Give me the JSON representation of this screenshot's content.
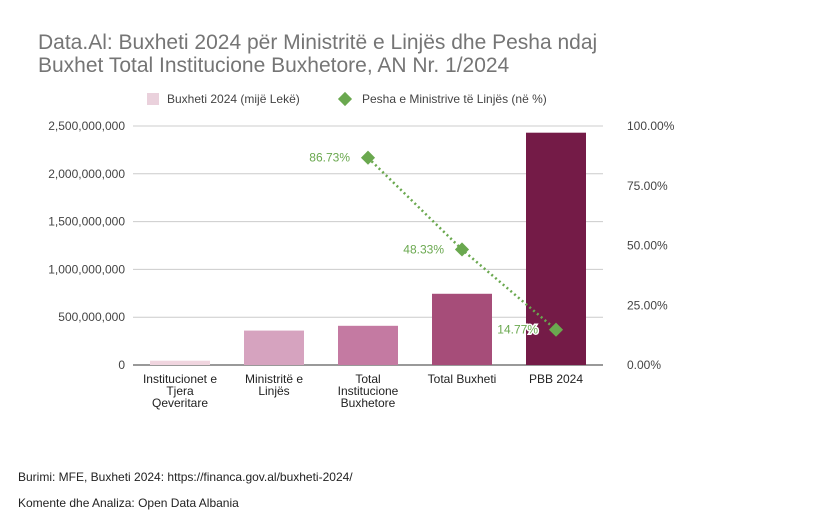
{
  "title_line1": "Data.Al: Buxheti 2024 për Ministritë e Linjës dhe Pesha ndaj",
  "title_line2": "Buxhet Total Institucione Buxhetore, AN Nr. 1/2024",
  "footer": {
    "source": "Burimi: MFE, Buxheti 2024: https://financa.gov.al/buxheti-2024/",
    "analysis": "Komente dhe Analiza: Open Data Albania"
  },
  "chart_data": {
    "type": "bar",
    "categories": [
      [
        "Institucionet e",
        "Tjera",
        "Qeveritare"
      ],
      [
        "Ministritë e",
        "Linjës"
      ],
      [
        "Total",
        "Institucione",
        "Buxhetore"
      ],
      [
        "Total Buxheti"
      ],
      [
        "PBB 2024"
      ]
    ],
    "series": [
      {
        "name": "Buxheti 2024 (mijë Lekë)",
        "kind": "bar",
        "axis": "left",
        "values": [
          45000000,
          360000000,
          410000000,
          745000000,
          2430000000
        ],
        "colors": [
          "#f0d5df",
          "#d6a3bf",
          "#c47aa2",
          "#a64d79",
          "#741b47"
        ]
      },
      {
        "name": "Pesha e Ministrive të Linjës (në %)",
        "kind": "line",
        "axis": "right",
        "color": "#6aa84f",
        "points": [
          {
            "category_index": 2,
            "value": 86.73,
            "label": "86.73%"
          },
          {
            "category_index": 3,
            "value": 48.33,
            "label": "48.33%"
          },
          {
            "category_index": 4,
            "value": 14.77,
            "label": "14.77%"
          }
        ]
      }
    ],
    "legend_swatch_color": "#ead1dc",
    "legend_position": "top",
    "y_left": {
      "ylim": [
        0,
        2500000000
      ],
      "ticks": [
        0,
        500000000,
        1000000000,
        1500000000,
        2000000000,
        2500000000
      ],
      "tick_labels": [
        "0",
        "500,000,000",
        "1,000,000,000",
        "1,500,000,000",
        "2,000,000,000",
        "2,500,000,000"
      ]
    },
    "y_right": {
      "ylim": [
        0,
        100
      ],
      "ticks": [
        0,
        25,
        50,
        75,
        100
      ],
      "tick_labels": [
        "0.00%",
        "25.00%",
        "50.00%",
        "75.00%",
        "100.00%"
      ]
    },
    "grid": true
  }
}
